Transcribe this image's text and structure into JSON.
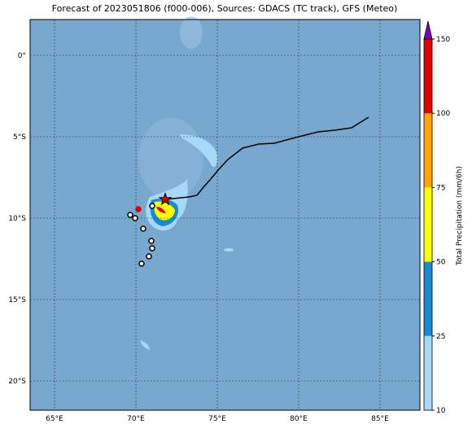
{
  "map": {
    "title": "Forecast of 2023051806 (f000-006), Sources: GDACS (TC track), GFS (Meteo)",
    "xlim": [
      63.5,
      87.45
    ],
    "ylim": [
      -21.8,
      2.2
    ],
    "xticks": [
      {
        "value": 65,
        "label": "65°E"
      },
      {
        "value": 70,
        "label": "70°E"
      },
      {
        "value": 75,
        "label": "75°E"
      },
      {
        "value": 80,
        "label": "80°E"
      },
      {
        "value": 85,
        "label": "85°E"
      }
    ],
    "yticks": [
      {
        "value": 0,
        "label": "0°"
      },
      {
        "value": -5,
        "label": "5°S"
      },
      {
        "value": -10,
        "label": "10°S"
      },
      {
        "value": -15,
        "label": "15°S"
      },
      {
        "value": -20,
        "label": "20°S"
      }
    ],
    "ocean_color": "#78a8cf",
    "track": {
      "color": "#000000",
      "lon": [
        84.3,
        83.25,
        82.2,
        81.2,
        80.0,
        78.5,
        77.55,
        76.55,
        75.65,
        75.05,
        74.6,
        74.15,
        73.75,
        73.25,
        71.8
      ],
      "lat": [
        -3.8,
        -4.45,
        -4.6,
        -4.7,
        -5.0,
        -5.4,
        -5.45,
        -5.7,
        -6.4,
        -7.05,
        -7.6,
        -8.1,
        -8.6,
        -8.7,
        -8.85
      ]
    },
    "current_position": {
      "lon": 71.8,
      "lat": -8.85,
      "color": "#e00000"
    },
    "colorbar": {
      "label": "Total Precipitation (mm/6h)",
      "ticks": [
        10,
        25,
        50,
        75,
        100,
        150
      ],
      "colors": [
        "#a8d8f8",
        "#1a8ad6",
        "#ffff00",
        "#ffa500",
        "#e00000"
      ],
      "extend_color": "#8000c0"
    }
  }
}
